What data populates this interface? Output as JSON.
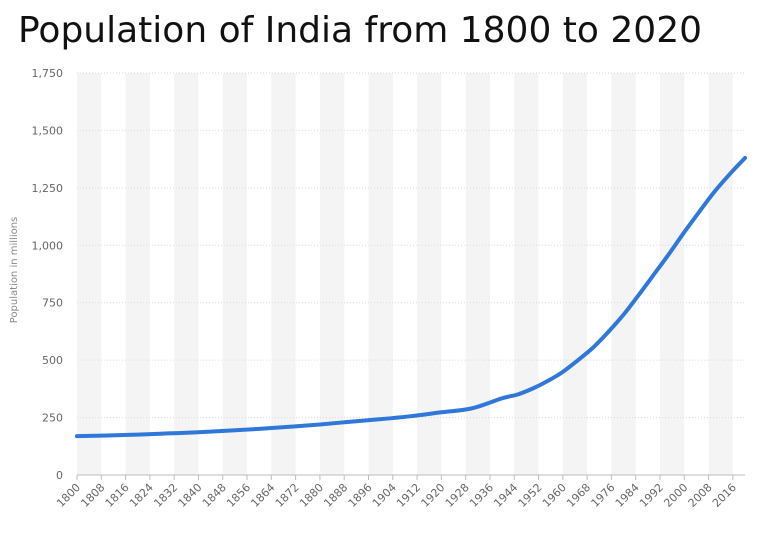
{
  "chart_data": {
    "type": "line",
    "title": "Population of India from 1800 to 2020",
    "xlabel": "",
    "ylabel": "Population in millions",
    "ylim": [
      0,
      1750
    ],
    "y_ticks": [
      0,
      250,
      500,
      750,
      1000,
      1250,
      1500,
      1750
    ],
    "y_tick_labels": [
      "0",
      "250",
      "500",
      "750",
      "1,000",
      "1,250",
      "1,500",
      "1,750"
    ],
    "x_range": [
      1800,
      2020
    ],
    "x_ticks": [
      1800,
      1808,
      1816,
      1824,
      1832,
      1840,
      1848,
      1856,
      1864,
      1872,
      1880,
      1888,
      1896,
      1904,
      1912,
      1920,
      1928,
      1936,
      1944,
      1952,
      1960,
      1968,
      1976,
      1984,
      1992,
      2000,
      2008,
      2016
    ],
    "x_tick_labels": [
      "1800",
      "1808",
      "1816",
      "1824",
      "1832",
      "1840",
      "1848",
      "1856",
      "1864",
      "1872",
      "1880",
      "1888",
      "1896",
      "1904",
      "1912",
      "1920",
      "1928",
      "1936",
      "1944",
      "1952",
      "1960",
      "1968",
      "1976",
      "1984",
      "1992",
      "2000",
      "2008",
      "2016"
    ],
    "grid": true,
    "series": [
      {
        "name": "Population",
        "color": "#2f77d9",
        "x": [
          1800,
          1810,
          1820,
          1830,
          1840,
          1850,
          1860,
          1870,
          1880,
          1890,
          1900,
          1910,
          1920,
          1930,
          1940,
          1945,
          1950,
          1955,
          1960,
          1965,
          1970,
          1975,
          1980,
          1985,
          1990,
          1995,
          2000,
          2005,
          2010,
          2015,
          2020
        ],
        "values": [
          169,
          172,
          176,
          181,
          186,
          193,
          201,
          210,
          220,
          232,
          243,
          256,
          273,
          290,
          334,
          350,
          376,
          409,
          449,
          500,
          555,
          623,
          698,
          784,
          873,
          963,
          1057,
          1147,
          1234,
          1310,
          1380
        ]
      }
    ]
  }
}
